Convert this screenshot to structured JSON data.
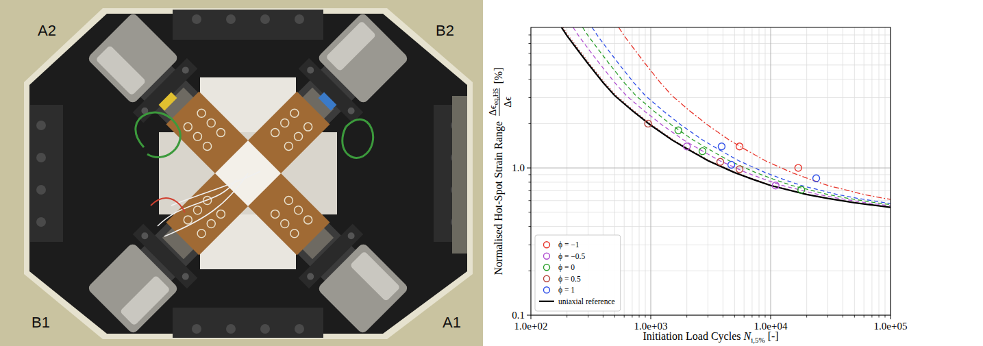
{
  "photo": {
    "labels": [
      "A2",
      "B2",
      "B1",
      "A1"
    ]
  },
  "chart_data": {
    "type": "scatter",
    "xlabel": "Initiation Load Cycles",
    "xlabel_symbol": "N",
    "xlabel_subscript": "i,5%",
    "xlabel_unit": "[-]",
    "ylabel": "Normalised Hot-Spot Strain Range",
    "ylabel_numerator": "Δϵ",
    "ylabel_numerator_subscript": "eq,HS",
    "ylabel_denominator": "Δϵ",
    "ylabel_unit": "[%]",
    "log": true,
    "grid": true,
    "legend": "lower left",
    "xlim": [
      100,
      100000
    ],
    "xticks": [
      {
        "value": 100,
        "label": "1.0e+02"
      },
      {
        "value": 1000,
        "label": "1.0e+03"
      },
      {
        "value": 10000,
        "label": "1.0e+04"
      },
      {
        "value": 100000,
        "label": "1.0e+05"
      }
    ],
    "ylim": [
      0.1,
      9
    ],
    "yticks": [
      0.1,
      {
        "value": 1,
        "label": "1.0"
      }
    ],
    "series": [
      {
        "name": "ϕ = −1",
        "color": "#e8362c",
        "marker": "circle",
        "line_style": "dashdot",
        "x": [
          5500,
          17000
        ],
        "values": [
          1.4,
          1.0
        ],
        "fit": {
          "x": [
            540,
            600,
            750,
            900,
            1200,
            1500,
            2100,
            3000,
            4500,
            6000,
            9000,
            15000,
            21000,
            30000,
            60000,
            90000,
            150000
          ],
          "values": [
            9.0,
            7.9,
            6.2,
            5.1,
            3.8,
            3.1,
            2.45,
            1.95,
            1.55,
            1.35,
            1.12,
            0.93,
            0.84,
            0.76,
            0.66,
            0.62,
            0.58
          ]
        }
      },
      {
        "name": "ϕ = −0.5",
        "color": "#b04fd0",
        "marker": "circle",
        "line_style": "dashed",
        "x": [
          2000,
          11000
        ],
        "values": [
          1.4,
          0.76
        ],
        "fit": {
          "x": [
            225,
            250,
            312,
            375,
            500,
            625,
            875,
            1250,
            1875,
            2500,
            3750,
            6250,
            8750,
            12500,
            25000,
            37500,
            62500,
            87500,
            125000
          ],
          "values": [
            9.0,
            7.9,
            6.2,
            5.1,
            3.8,
            3.1,
            2.45,
            1.95,
            1.55,
            1.35,
            1.12,
            0.93,
            0.84,
            0.76,
            0.66,
            0.62,
            0.58,
            0.56,
            0.54
          ]
        }
      },
      {
        "name": "ϕ = 0",
        "color": "#2ca02c",
        "marker": "circle",
        "line_style": "dashed",
        "x": [
          1700,
          2700,
          18000
        ],
        "values": [
          1.8,
          1.3,
          0.71
        ],
        "fit": {
          "x": [
            270,
            300,
            375,
            450,
            600,
            750,
            1050,
            1500,
            2250,
            3000,
            4500,
            7500,
            10500,
            15000,
            30000,
            45000,
            75000,
            105000
          ],
          "values": [
            9.0,
            7.9,
            6.2,
            5.1,
            3.8,
            3.1,
            2.45,
            1.95,
            1.55,
            1.35,
            1.12,
            0.93,
            0.84,
            0.76,
            0.66,
            0.62,
            0.58,
            0.56
          ]
        }
      },
      {
        "name": "ϕ = 0.5",
        "color": "#b8453e",
        "marker": "circle",
        "line_style": "dotted",
        "x": [
          950,
          3800,
          5500
        ],
        "values": [
          2.0,
          1.1,
          0.98
        ],
        "fit": {
          "x": [
            185,
            206,
            258,
            309,
            412,
            515,
            721,
            1030,
            1545,
            2060,
            3090,
            5150,
            7210,
            10300,
            20600,
            30900,
            51500,
            72100,
            103000
          ],
          "values": [
            9.0,
            7.9,
            6.2,
            5.1,
            3.8,
            3.1,
            2.45,
            1.95,
            1.55,
            1.35,
            1.12,
            0.93,
            0.84,
            0.76,
            0.66,
            0.62,
            0.58,
            0.56,
            0.54
          ]
        }
      },
      {
        "name": "ϕ = 1",
        "color": "#2f4fe8",
        "marker": "circle",
        "line_style": "dashed",
        "x": [
          3900,
          4700,
          24000
        ],
        "values": [
          1.4,
          1.05,
          0.85
        ],
        "fit": {
          "x": [
            324,
            360,
            450,
            540,
            720,
            900,
            1260,
            1800,
            2700,
            3600,
            5400,
            9000,
            12600,
            18000,
            36000,
            54000,
            90000,
            126000
          ],
          "values": [
            9.0,
            7.9,
            6.2,
            5.1,
            3.8,
            3.1,
            2.45,
            1.95,
            1.55,
            1.35,
            1.12,
            0.93,
            0.84,
            0.76,
            0.66,
            0.62,
            0.58,
            0.56
          ]
        }
      },
      {
        "name": "uniaxial reference",
        "type": "line",
        "color": "#000000",
        "line_style": "solid",
        "x": [
          180,
          200,
          250,
          300,
          400,
          500,
          700,
          1000,
          1500,
          2000,
          3000,
          5000,
          7000,
          10000,
          20000,
          30000,
          50000,
          70000,
          100000
        ],
        "values": [
          9.0,
          7.9,
          6.2,
          5.1,
          3.8,
          3.1,
          2.45,
          1.95,
          1.55,
          1.35,
          1.12,
          0.93,
          0.84,
          0.76,
          0.66,
          0.62,
          0.58,
          0.56,
          0.54
        ]
      }
    ]
  }
}
